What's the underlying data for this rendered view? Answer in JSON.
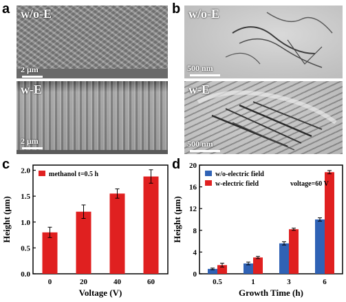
{
  "panels": {
    "a": {
      "letter": "a",
      "top": {
        "label": "w/o-E",
        "scale": "2 μm"
      },
      "bottom": {
        "label": "w-E",
        "scale": "2 μm"
      }
    },
    "b": {
      "letter": "b",
      "top": {
        "label": "w/o-E",
        "scale": "500 nm"
      },
      "bottom": {
        "label": "w-E",
        "scale": "500 nm"
      }
    },
    "c": {
      "letter": "c"
    },
    "d": {
      "letter": "d"
    }
  },
  "colors": {
    "red": "#e02020",
    "blue": "#2f62b5"
  },
  "chart_data": [
    {
      "panel": "c",
      "type": "bar",
      "categories": [
        "0",
        "20",
        "40",
        "60"
      ],
      "series": [
        {
          "name": "methanol  t=0.5 h",
          "values": [
            0.8,
            1.2,
            1.55,
            1.88
          ],
          "errors": [
            0.1,
            0.13,
            0.09,
            0.13
          ]
        }
      ],
      "xlabel": "Voltage (V)",
      "ylabel": "Height (μm)",
      "ylim": [
        0,
        2.1
      ],
      "yticks": [
        "0.0",
        "0.5",
        "1.0",
        "1.5",
        "2.0"
      ],
      "legend": "top-left"
    },
    {
      "panel": "d",
      "type": "bar",
      "categories": [
        "0.5",
        "1",
        "3",
        "6"
      ],
      "series": [
        {
          "name": "w/o-electric field",
          "values": [
            0.9,
            1.9,
            5.6,
            10.0
          ],
          "errors": [
            0.15,
            0.25,
            0.3,
            0.3
          ]
        },
        {
          "name": "w-electric field",
          "values": [
            1.6,
            3.0,
            8.2,
            18.7
          ],
          "errors": [
            0.35,
            0.2,
            0.2,
            0.3
          ]
        }
      ],
      "annotation": "voltage=60 V",
      "xlabel": "Growth Time (h)",
      "ylabel": "Height (μm)",
      "ylim": [
        0,
        20
      ],
      "yticks": [
        "0",
        "4",
        "8",
        "12",
        "16",
        "20"
      ],
      "legend": "top-left"
    }
  ]
}
